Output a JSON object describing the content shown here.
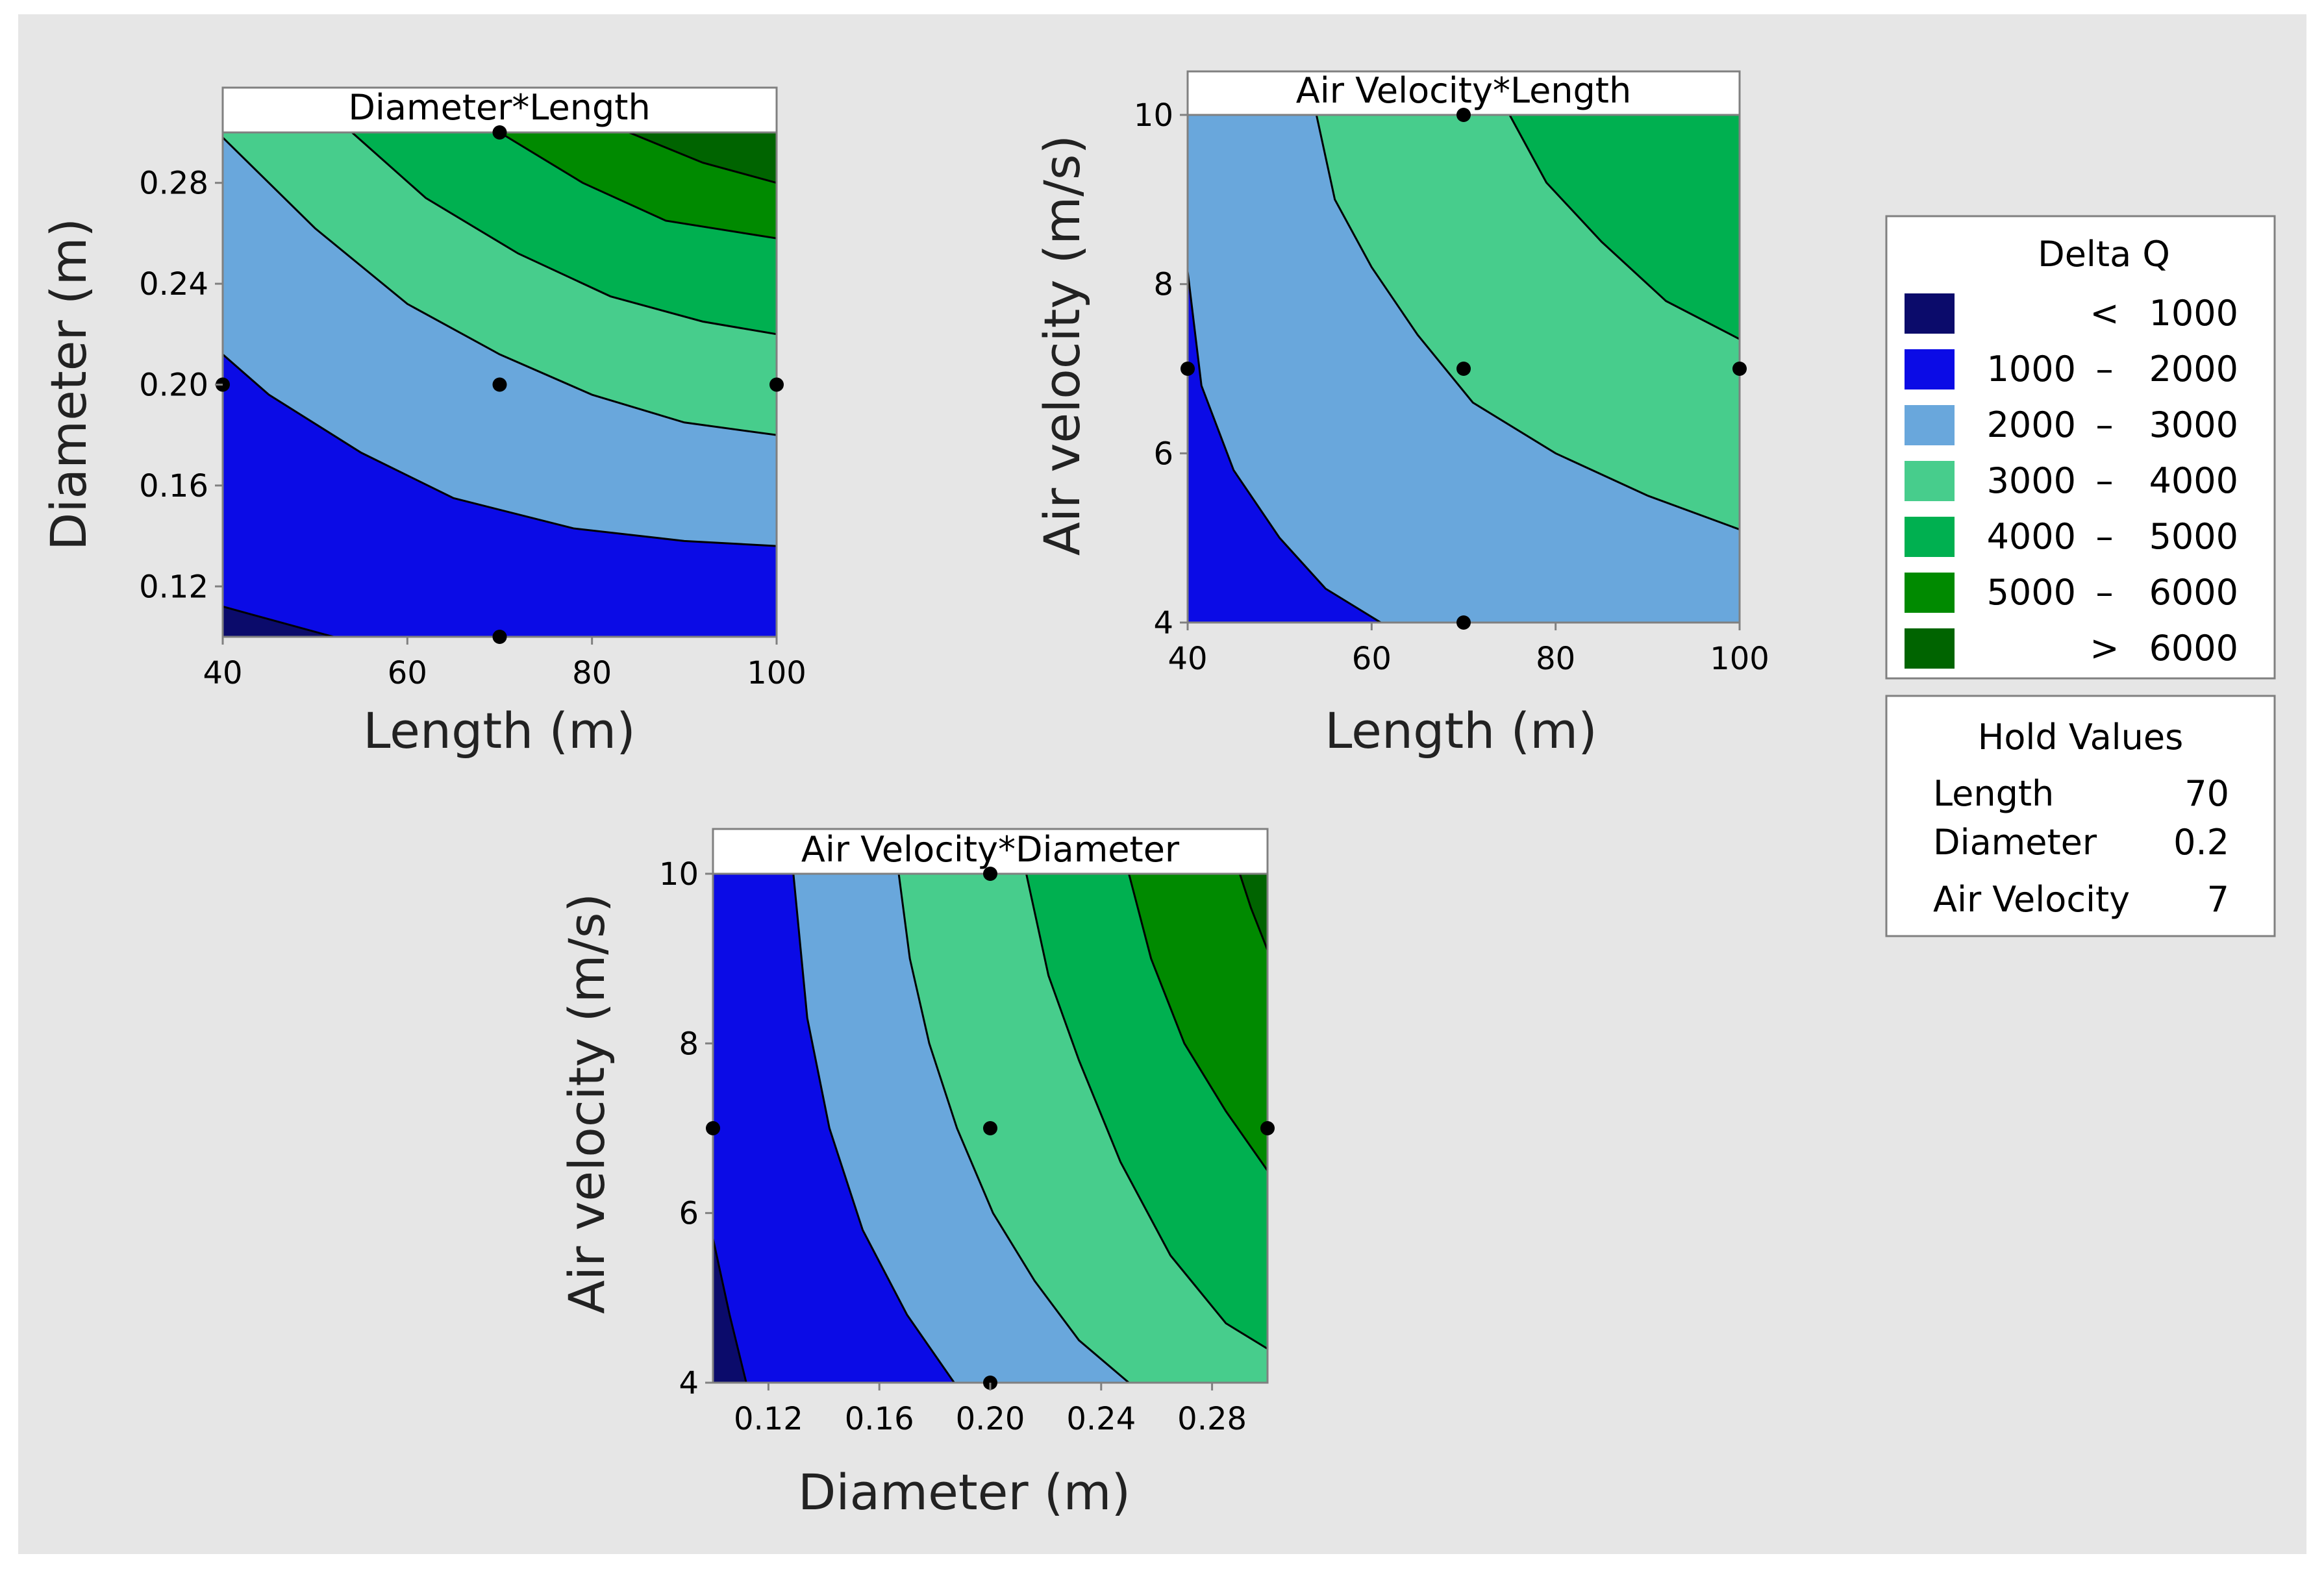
{
  "chart_data": [
    {
      "type": "contour",
      "title": "Diameter*Length",
      "xlabel": "Length (m)",
      "ylabel": "Diameter (m)",
      "xlim": [
        40,
        100
      ],
      "ylim": [
        0.1,
        0.3
      ],
      "xticks": [
        40,
        60,
        80,
        100
      ],
      "xtick_labels": [
        "40",
        "60",
        "80",
        "100"
      ],
      "yticks": [
        0.12,
        0.16,
        0.2,
        0.24,
        0.28
      ],
      "ytick_labels": [
        "0.12",
        "0.16",
        "0.20",
        "0.24",
        "0.28"
      ],
      "contour_lines": [
        {
          "level": 1000,
          "points": [
            [
              40,
              0.112
            ],
            [
              52,
              0.1
            ]
          ]
        },
        {
          "level": 2000,
          "points": [
            [
              40,
              0.212
            ],
            [
              45,
              0.196
            ],
            [
              55,
              0.173
            ],
            [
              65,
              0.155
            ],
            [
              78,
              0.143
            ],
            [
              90,
              0.138
            ],
            [
              100,
              0.136
            ]
          ]
        },
        {
          "level": 3000,
          "points": [
            [
              40,
              0.298
            ],
            [
              50,
              0.262
            ],
            [
              60,
              0.232
            ],
            [
              70,
              0.212
            ],
            [
              80,
              0.196
            ],
            [
              90,
              0.185
            ],
            [
              100,
              0.18
            ]
          ]
        },
        {
          "level": 4000,
          "points": [
            [
              54,
              0.3
            ],
            [
              62,
              0.274
            ],
            [
              72,
              0.252
            ],
            [
              82,
              0.235
            ],
            [
              92,
              0.225
            ],
            [
              100,
              0.22
            ]
          ]
        },
        {
          "level": 5000,
          "points": [
            [
              70,
              0.3
            ],
            [
              79,
              0.28
            ],
            [
              88,
              0.265
            ],
            [
              100,
              0.258
            ]
          ]
        },
        {
          "level": 6000,
          "points": [
            [
              84,
              0.3
            ],
            [
              92,
              0.288
            ],
            [
              100,
              0.28
            ]
          ]
        }
      ],
      "design_points": [
        [
          40,
          0.2
        ],
        [
          70,
          0.3
        ],
        [
          70,
          0.2
        ],
        [
          70,
          0.1
        ],
        [
          100,
          0.2
        ]
      ]
    },
    {
      "type": "contour",
      "title": "Air Velocity*Length",
      "xlabel": "Length (m)",
      "ylabel": "Air velocity (m/s)",
      "xlim": [
        40,
        100
      ],
      "ylim": [
        4,
        10
      ],
      "xticks": [
        40,
        60,
        80,
        100
      ],
      "xtick_labels": [
        "40",
        "60",
        "80",
        "100"
      ],
      "yticks": [
        4,
        6,
        8,
        10
      ],
      "ytick_labels": [
        "4",
        "6",
        "8",
        "10"
      ],
      "contour_lines": [
        {
          "level": 2000,
          "points": [
            [
              40,
              8.15
            ],
            [
              41.5,
              6.8
            ],
            [
              45,
              5.8
            ],
            [
              50,
              5.0
            ],
            [
              55,
              4.4
            ],
            [
              61,
              4.0
            ]
          ]
        },
        {
          "level": 3000,
          "points": [
            [
              54,
              10
            ],
            [
              56,
              9.0
            ],
            [
              60,
              8.2
            ],
            [
              65,
              7.4
            ],
            [
              71,
              6.6
            ],
            [
              80,
              6.0
            ],
            [
              90,
              5.5
            ],
            [
              100,
              5.1
            ]
          ]
        },
        {
          "level": 4000,
          "points": [
            [
              75,
              10
            ],
            [
              79,
              9.2
            ],
            [
              85,
              8.5
            ],
            [
              92,
              7.8
            ],
            [
              100,
              7.35
            ]
          ]
        }
      ],
      "design_points": [
        [
          40,
          7
        ],
        [
          70,
          10
        ],
        [
          70,
          7
        ],
        [
          70,
          4
        ],
        [
          100,
          7
        ]
      ]
    },
    {
      "type": "contour",
      "title": "Air Velocity*Diameter",
      "xlabel": "Diameter (m)",
      "ylabel": "Air velocity (m/s)",
      "xlim": [
        0.1,
        0.3
      ],
      "ylim": [
        4,
        10
      ],
      "xticks": [
        0.12,
        0.16,
        0.2,
        0.24,
        0.28
      ],
      "xtick_labels": [
        "0.12",
        "0.16",
        "0.20",
        "0.24",
        "0.28"
      ],
      "yticks": [
        4,
        6,
        8,
        10
      ],
      "ytick_labels": [
        "4",
        "6",
        "8",
        "10"
      ],
      "contour_lines": [
        {
          "level": 1000,
          "points": [
            [
              0.1,
              5.7
            ],
            [
              0.106,
              4.8
            ],
            [
              0.112,
              4.0
            ]
          ]
        },
        {
          "level": 2000,
          "points": [
            [
              0.129,
              10
            ],
            [
              0.134,
              8.3
            ],
            [
              0.142,
              7.0
            ],
            [
              0.154,
              5.8
            ],
            [
              0.17,
              4.8
            ],
            [
              0.187,
              4.0
            ]
          ]
        },
        {
          "level": 3000,
          "points": [
            [
              0.167,
              10
            ],
            [
              0.171,
              9.0
            ],
            [
              0.178,
              8.0
            ],
            [
              0.188,
              7.0
            ],
            [
              0.201,
              6.0
            ],
            [
              0.216,
              5.2
            ],
            [
              0.232,
              4.5
            ],
            [
              0.25,
              4.0
            ]
          ]
        },
        {
          "level": 4000,
          "points": [
            [
              0.213,
              10
            ],
            [
              0.221,
              8.8
            ],
            [
              0.232,
              7.8
            ],
            [
              0.247,
              6.6
            ],
            [
              0.265,
              5.5
            ],
            [
              0.285,
              4.7
            ],
            [
              0.3,
              4.4
            ]
          ]
        },
        {
          "level": 5000,
          "points": [
            [
              0.25,
              10
            ],
            [
              0.258,
              9.0
            ],
            [
              0.27,
              8.0
            ],
            [
              0.285,
              7.2
            ],
            [
              0.3,
              6.5
            ]
          ]
        },
        {
          "level": 6000,
          "points": [
            [
              0.29,
              10
            ],
            [
              0.294,
              9.6
            ],
            [
              0.3,
              9.1
            ]
          ]
        }
      ],
      "design_points": [
        [
          0.1,
          7
        ],
        [
          0.2,
          10
        ],
        [
          0.2,
          7
        ],
        [
          0.2,
          4
        ],
        [
          0.3,
          7
        ]
      ]
    }
  ],
  "legend": {
    "title": "Delta Q",
    "items": [
      {
        "low": "",
        "sep": "<",
        "high": "1000",
        "color": "#0b0b6b"
      },
      {
        "low": "1000",
        "sep": "–",
        "high": "2000",
        "color": "#0b0be6"
      },
      {
        "low": "2000",
        "sep": "–",
        "high": "3000",
        "color": "#69a7dc"
      },
      {
        "low": "3000",
        "sep": "–",
        "high": "4000",
        "color": "#47cd8c"
      },
      {
        "low": "4000",
        "sep": "–",
        "high": "5000",
        "color": "#00b050"
      },
      {
        "low": "5000",
        "sep": "–",
        "high": "6000",
        "color": "#008a00"
      },
      {
        "low": "",
        "sep": ">",
        "high": "6000",
        "color": "#006400"
      }
    ]
  },
  "hold_values": {
    "title": "Hold Values",
    "rows": [
      {
        "name": "Length",
        "value": "70"
      },
      {
        "name": "Diameter",
        "value": "0.2"
      },
      {
        "name": "Air Velocity",
        "value": "7"
      }
    ]
  },
  "colors": {
    "background": "#e6e6e6",
    "panel_border": "#808080"
  }
}
